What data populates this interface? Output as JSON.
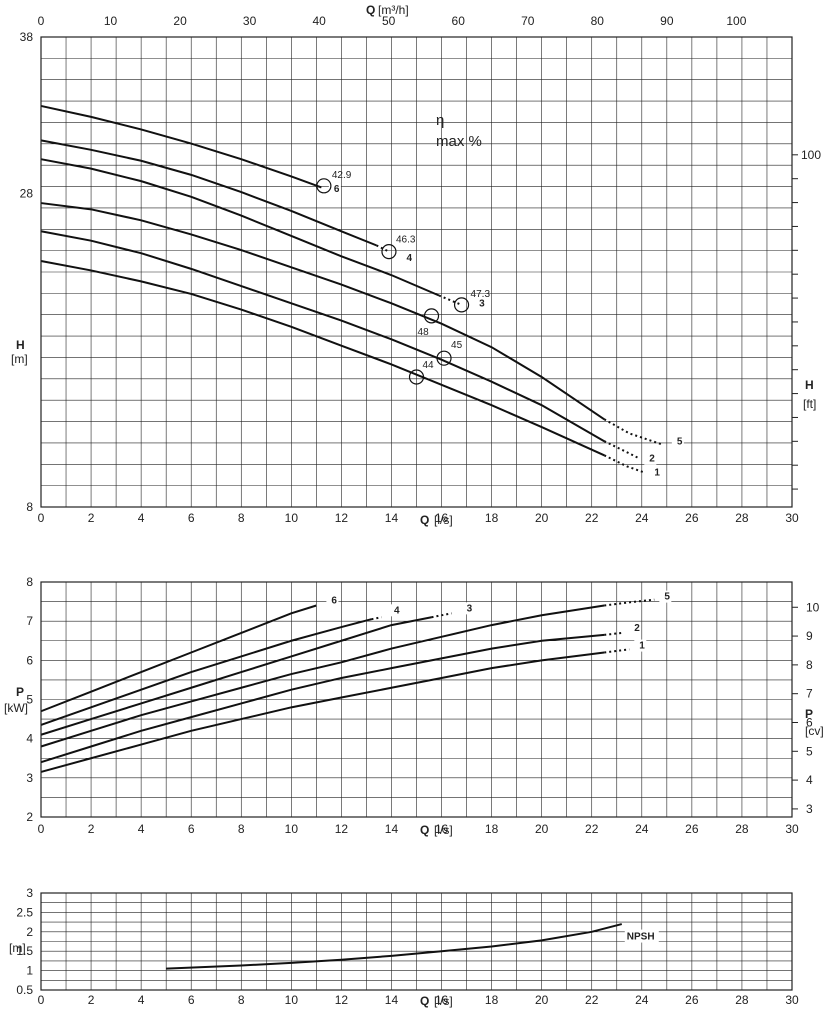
{
  "chart_data": [
    {
      "id": "head",
      "type": "line",
      "top_axis": {
        "label_bold": "Q",
        "label_unit": "[m³/h]",
        "ticks": [
          "0",
          "10",
          "20",
          "30",
          "40",
          "50",
          "60",
          "70",
          "80",
          "90",
          "100"
        ],
        "range": [
          0,
          108
        ]
      },
      "x_axis": {
        "label_bold": "Q",
        "label_unit": "[l/s]",
        "ticks": [
          "0",
          "2",
          "4",
          "6",
          "8",
          "10",
          "12",
          "14",
          "16",
          "18",
          "20",
          "22",
          "24",
          "26",
          "28",
          "30"
        ],
        "range": [
          0,
          30
        ]
      },
      "y_axis": {
        "label_bold": "H",
        "label_unit": "[m]",
        "ticks": [
          "8",
          "28",
          "38"
        ],
        "range": [
          8,
          38
        ]
      },
      "y2_axis": {
        "label_bold": "H",
        "label_unit": "[ft]",
        "ticks": [
          "100"
        ]
      },
      "annotation": {
        "eta": "η",
        "text": "max %"
      },
      "series": [
        {
          "name": "6",
          "x": [
            0,
            2,
            4,
            6,
            8,
            10,
            11.2
          ],
          "y": [
            33.6,
            32.9,
            32.1,
            31.2,
            30.2,
            29.1,
            28.4
          ],
          "x_dotted": [],
          "y_dotted": []
        },
        {
          "name": "4",
          "x": [
            0,
            2,
            4,
            6,
            8,
            10,
            12,
            13.4
          ],
          "y": [
            31.4,
            30.8,
            30.1,
            29.2,
            28.1,
            26.9,
            25.6,
            24.7
          ],
          "x_dotted": [
            13.4,
            13.9
          ],
          "y_dotted": [
            24.7,
            24.3
          ]
        },
        {
          "name": "3",
          "x": [
            0,
            2,
            4,
            6,
            8,
            10,
            12,
            14,
            15.9
          ],
          "y": [
            30.2,
            29.6,
            28.8,
            27.8,
            26.6,
            25.3,
            24.0,
            22.8,
            21.5
          ],
          "x_dotted": [
            15.9,
            16.8
          ],
          "y_dotted": [
            21.5,
            20.9
          ]
        },
        {
          "name": "5",
          "x": [
            0,
            2,
            4,
            6,
            8,
            10,
            12,
            14,
            16,
            18,
            20,
            22.5
          ],
          "y": [
            27.4,
            27.0,
            26.3,
            25.4,
            24.4,
            23.3,
            22.2,
            21.0,
            19.7,
            18.2,
            16.3,
            13.6
          ],
          "x_dotted": [
            22.5,
            23.5,
            24.8
          ],
          "y_dotted": [
            13.6,
            12.7,
            12.0
          ]
        },
        {
          "name": "2",
          "x": [
            0,
            2,
            4,
            6,
            8,
            10,
            12,
            14,
            16,
            18,
            20,
            22.5
          ],
          "y": [
            25.6,
            25.0,
            24.2,
            23.2,
            22.1,
            21.0,
            19.9,
            18.7,
            17.4,
            16.0,
            14.5,
            12.2
          ],
          "x_dotted": [
            22.5,
            23.4,
            23.9
          ],
          "y_dotted": [
            12.2,
            11.5,
            11.1
          ]
        },
        {
          "name": "1",
          "x": [
            0,
            2,
            4,
            6,
            8,
            10,
            12,
            14,
            16,
            18,
            20,
            22.5
          ],
          "y": [
            23.7,
            23.1,
            22.4,
            21.6,
            20.6,
            19.5,
            18.3,
            17.1,
            15.8,
            14.5,
            13.1,
            11.3
          ],
          "x_dotted": [
            22.5,
            23.4,
            24.1
          ],
          "y_dotted": [
            11.3,
            10.6,
            10.2
          ]
        }
      ],
      "efficiency_points": [
        {
          "curve": "6",
          "x": 11.3,
          "y": 28.5,
          "value": "42.9"
        },
        {
          "curve": "4",
          "x": 13.9,
          "y": 24.3,
          "value": "46.3"
        },
        {
          "curve": "3",
          "x": 16.8,
          "y": 20.9,
          "value": "47.3"
        },
        {
          "curve": "5",
          "x": 15.6,
          "y": 20.2,
          "value": "48"
        },
        {
          "curve": "2",
          "x": 16.1,
          "y": 17.5,
          "value": "45"
        },
        {
          "curve": "1",
          "x": 15.0,
          "y": 16.3,
          "value": "44"
        }
      ]
    },
    {
      "id": "power",
      "type": "line",
      "x_axis": {
        "label_bold": "Q",
        "label_unit": "[l/s]",
        "ticks": [
          "0",
          "2",
          "4",
          "6",
          "8",
          "10",
          "12",
          "14",
          "16",
          "18",
          "20",
          "22",
          "24",
          "26",
          "28",
          "30"
        ],
        "range": [
          0,
          30
        ]
      },
      "y_axis": {
        "label_bold": "P",
        "label_unit": "[kW]",
        "ticks": [
          "2",
          "3",
          "4",
          "5",
          "6",
          "7",
          "8"
        ],
        "range": [
          2,
          8
        ]
      },
      "y2_axis": {
        "label_bold": "P",
        "label_unit": "[cv]",
        "ticks": [
          "3",
          "4",
          "5",
          "6",
          "7",
          "8",
          "9",
          "10"
        ]
      },
      "series": [
        {
          "name": "6",
          "x": [
            0,
            2,
            4,
            6,
            8,
            10,
            11
          ],
          "y": [
            4.7,
            5.2,
            5.7,
            6.2,
            6.7,
            7.2,
            7.4
          ],
          "x_dotted": [],
          "y_dotted": []
        },
        {
          "name": "4",
          "x": [
            0,
            2,
            4,
            6,
            8,
            10,
            12,
            13.2
          ],
          "y": [
            4.35,
            4.8,
            5.25,
            5.7,
            6.1,
            6.5,
            6.85,
            7.05
          ],
          "x_dotted": [
            13.2,
            13.6
          ],
          "y_dotted": [
            7.05,
            7.1
          ]
        },
        {
          "name": "3",
          "x": [
            0,
            2,
            4,
            6,
            8,
            10,
            12,
            14,
            15.6
          ],
          "y": [
            4.1,
            4.5,
            4.9,
            5.3,
            5.7,
            6.1,
            6.5,
            6.9,
            7.1
          ],
          "x_dotted": [
            15.6,
            16.4
          ],
          "y_dotted": [
            7.1,
            7.2
          ]
        },
        {
          "name": "5",
          "x": [
            0,
            2,
            4,
            6,
            8,
            10,
            12,
            14,
            16,
            18,
            20,
            22.5
          ],
          "y": [
            3.8,
            4.2,
            4.6,
            4.95,
            5.3,
            5.65,
            5.95,
            6.3,
            6.6,
            6.9,
            7.15,
            7.4
          ],
          "x_dotted": [
            22.5,
            23.5,
            24.5
          ],
          "y_dotted": [
            7.4,
            7.48,
            7.55
          ]
        },
        {
          "name": "2",
          "x": [
            0,
            2,
            4,
            6,
            8,
            10,
            12,
            14,
            16,
            18,
            20,
            22.5
          ],
          "y": [
            3.4,
            3.8,
            4.2,
            4.55,
            4.9,
            5.25,
            5.55,
            5.8,
            6.05,
            6.3,
            6.5,
            6.65
          ],
          "x_dotted": [
            22.5,
            23.2
          ],
          "y_dotted": [
            6.65,
            6.7
          ]
        },
        {
          "name": "1",
          "x": [
            0,
            2,
            4,
            6,
            8,
            10,
            12,
            14,
            16,
            18,
            20,
            22.5
          ],
          "y": [
            3.15,
            3.5,
            3.85,
            4.2,
            4.5,
            4.8,
            5.05,
            5.3,
            5.55,
            5.8,
            6.0,
            6.2
          ],
          "x_dotted": [
            22.5,
            23.5
          ],
          "y_dotted": [
            6.2,
            6.28
          ]
        }
      ]
    },
    {
      "id": "npsh",
      "type": "line",
      "x_axis": {
        "label_bold": "Q",
        "label_unit": "[l/s]",
        "ticks": [
          "0",
          "2",
          "4",
          "6",
          "8",
          "10",
          "12",
          "14",
          "16",
          "18",
          "20",
          "22",
          "24",
          "26",
          "28",
          "30"
        ],
        "range": [
          0,
          30
        ]
      },
      "y_axis": {
        "label_unit": "[m]",
        "ticks": [
          "0.5",
          "1",
          "1.5",
          "2",
          "2.5",
          "3"
        ],
        "range": [
          0.5,
          3
        ]
      },
      "series": [
        {
          "name": "NPSH",
          "x": [
            5,
            8,
            10,
            12,
            14,
            16,
            18,
            20,
            22,
            23.2
          ],
          "y": [
            1.05,
            1.13,
            1.2,
            1.28,
            1.38,
            1.5,
            1.62,
            1.78,
            2.0,
            2.2
          ]
        }
      ]
    }
  ]
}
